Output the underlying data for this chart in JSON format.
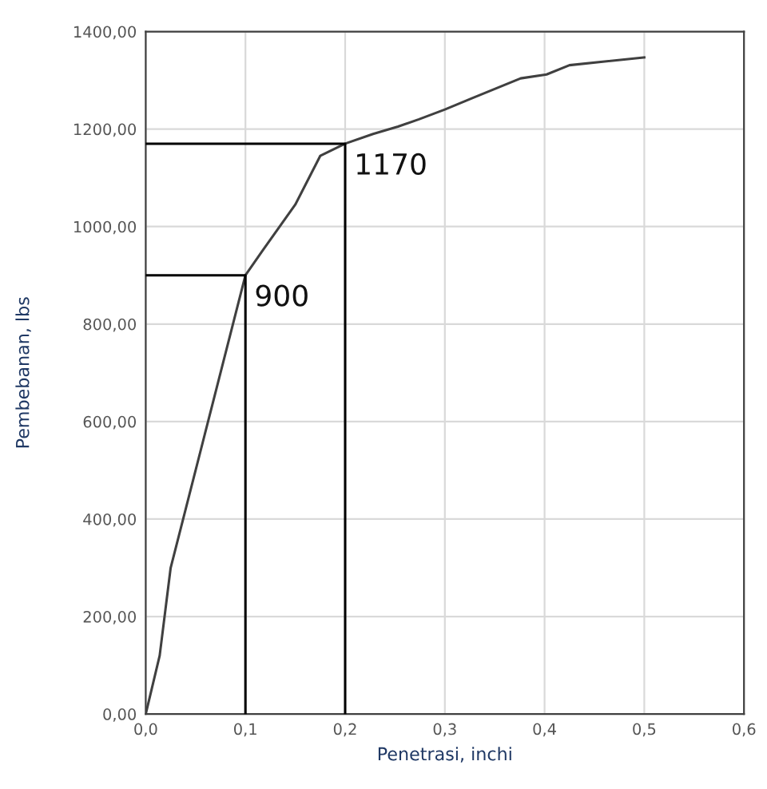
{
  "chart_data": {
    "type": "line",
    "xlabel": "Penetrasi, inchi",
    "ylabel": "Pembebanan, lbs",
    "series": [
      {
        "color": "#404040",
        "x": [
          0,
          0.014,
          0.025,
          0.1,
          0.117,
          0.15,
          0.175,
          0.2,
          0.228,
          0.253,
          0.274,
          0.3,
          0.327,
          0.376,
          0.402,
          0.425,
          0.5
        ],
        "values": [
          0,
          120,
          300,
          900,
          950,
          1045,
          1145,
          1170,
          1190,
          1205,
          1220,
          1240,
          1263,
          1304,
          1312,
          1331,
          1347
        ]
      },
      {
        "color": "#000000",
        "x": [
          0,
          0.1,
          0.1
        ],
        "values": [
          900,
          900,
          0
        ]
      },
      {
        "color": "#000000",
        "x": [
          0,
          0.2,
          0.2
        ],
        "values": [
          1170,
          1170,
          0
        ]
      }
    ],
    "annotations": [
      {
        "text": "900",
        "x": 0.1,
        "y": 900
      },
      {
        "text": "1170",
        "x": 0.2,
        "y": 1170
      }
    ],
    "xlim": [
      0,
      0.6
    ],
    "xticks": [
      {
        "value": 0,
        "label": "0,0"
      },
      {
        "value": 0.1,
        "label": "0,1"
      },
      {
        "value": 0.2,
        "label": "0,2"
      },
      {
        "value": 0.3,
        "label": "0,3"
      },
      {
        "value": 0.4,
        "label": "0,4"
      },
      {
        "value": 0.5,
        "label": "0,5"
      },
      {
        "value": 0.6,
        "label": "0,6"
      }
    ],
    "ylim": [
      0,
      1400
    ],
    "yticks": [
      {
        "value": 0,
        "label": "0,00"
      },
      {
        "value": 200,
        "label": "200,00"
      },
      {
        "value": 400,
        "label": "400,00"
      },
      {
        "value": 600,
        "label": "600,00"
      },
      {
        "value": 800,
        "label": "800,00"
      },
      {
        "value": 1000,
        "label": "1000,00"
      },
      {
        "value": 1200,
        "label": "1200,00"
      },
      {
        "value": 1400,
        "label": "1400,00"
      }
    ],
    "grid": true,
    "marker": "none",
    "line_style": "solid",
    "legend": false
  }
}
